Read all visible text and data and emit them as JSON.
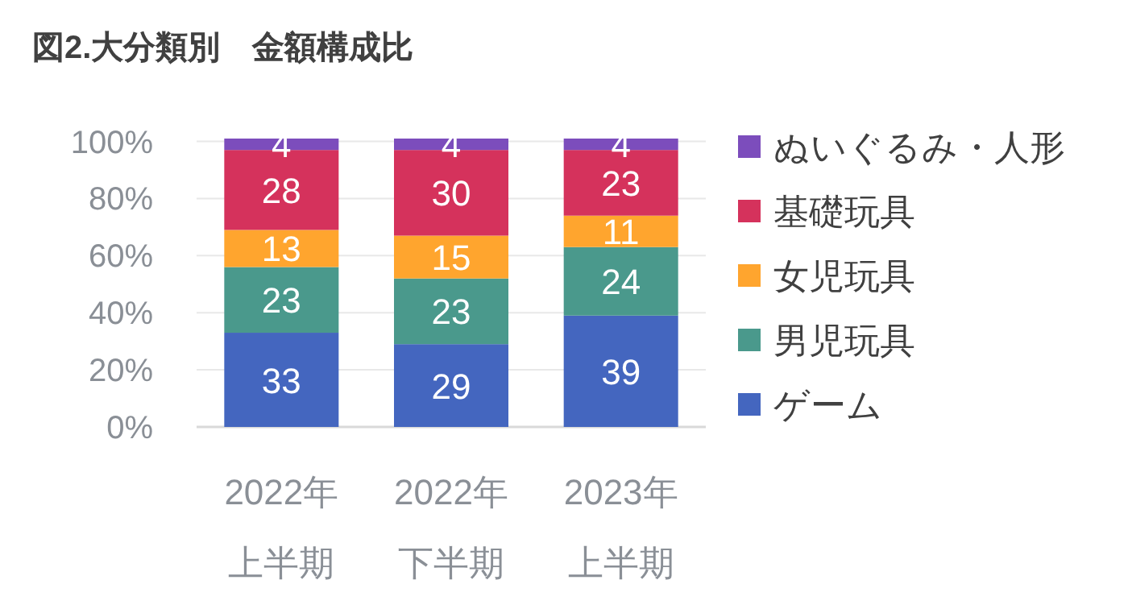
{
  "chart_data": {
    "type": "bar",
    "title": "図2.大分類別　金額構成比",
    "categories": [
      "2022年上半期",
      "2022年下半期",
      "2023年上半期"
    ],
    "stacked": true,
    "series": [
      {
        "name": "ゲーム",
        "color": "#4466bf",
        "values": [
          33,
          29,
          39
        ]
      },
      {
        "name": "男児玩具",
        "color": "#4a998c",
        "values": [
          23,
          23,
          24
        ]
      },
      {
        "name": "女児玩具",
        "color": "#ffa52e",
        "values": [
          13,
          15,
          11
        ]
      },
      {
        "name": "基礎玩具",
        "color": "#d5325c",
        "values": [
          28,
          30,
          23
        ]
      },
      {
        "name": "ぬいぐるみ・人形",
        "color": "#7c4dbc",
        "values": [
          4,
          4,
          4
        ]
      }
    ],
    "ylim": [
      0,
      101
    ],
    "yticks": [
      {
        "value": 0,
        "label": "0%"
      },
      {
        "value": 20,
        "label": "20%"
      },
      {
        "value": 40,
        "label": "40%"
      },
      {
        "value": 60,
        "label": "60%"
      },
      {
        "value": 80,
        "label": "80%"
      },
      {
        "value": 100,
        "label": "100%"
      }
    ],
    "grid": "y",
    "legend": "right",
    "data_labels": true
  }
}
